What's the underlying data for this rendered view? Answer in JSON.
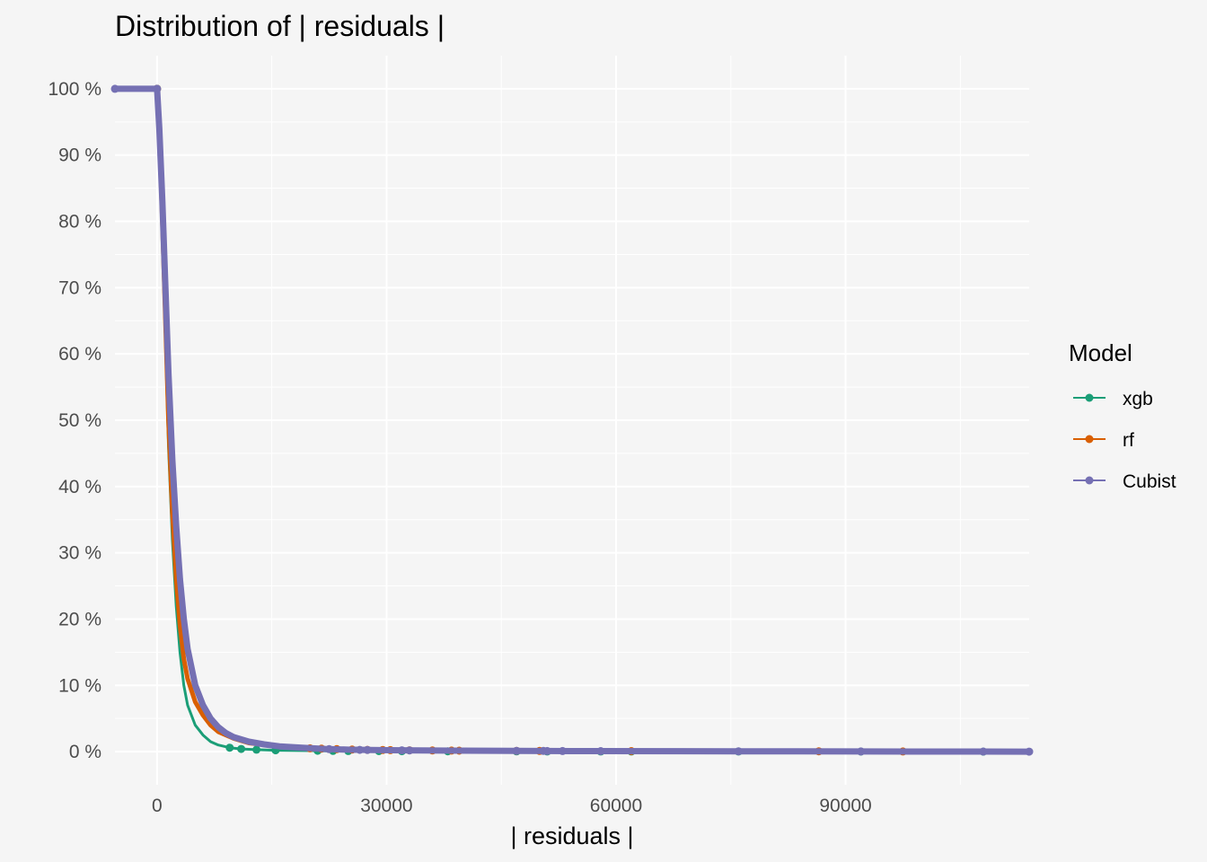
{
  "chart_data": {
    "type": "line",
    "title": "Distribution of | residuals |",
    "xlabel": "| residuals |",
    "ylabel": "",
    "xlim": [
      -5500,
      114000
    ],
    "ylim": [
      -0.05,
      1.05
    ],
    "x_ticks": [
      0,
      30000,
      60000,
      90000
    ],
    "x_tick_labels": [
      "0",
      "30000",
      "60000",
      "90000"
    ],
    "y_ticks": [
      0,
      0.1,
      0.2,
      0.3,
      0.4,
      0.5,
      0.6,
      0.7,
      0.8,
      0.9,
      1.0
    ],
    "y_tick_labels": [
      "0 %",
      "10 %",
      "20 %",
      "30 %",
      "40 %",
      "50 %",
      "60 %",
      "70 %",
      "80 %",
      "90 %",
      "100 %"
    ],
    "grid": true,
    "legend": {
      "title": "Model",
      "position": "right"
    },
    "series": [
      {
        "name": "xgb",
        "color": "#1b9e77",
        "line_width": 3,
        "points": [
          [
            -5500,
            1.0
          ],
          [
            0,
            1.0
          ],
          [
            300,
            0.92
          ],
          [
            700,
            0.78
          ],
          [
            1100,
            0.62
          ],
          [
            1500,
            0.46
          ],
          [
            2000,
            0.32
          ],
          [
            2500,
            0.22
          ],
          [
            3000,
            0.15
          ],
          [
            3500,
            0.1
          ],
          [
            4000,
            0.07
          ],
          [
            5000,
            0.04
          ],
          [
            6000,
            0.025
          ],
          [
            7000,
            0.015
          ],
          [
            8000,
            0.01
          ],
          [
            9500,
            0.006
          ],
          [
            11000,
            0.004
          ],
          [
            13000,
            0.003
          ],
          [
            15500,
            0.002
          ],
          [
            20000,
            0.0015
          ],
          [
            22000,
            0.0012
          ],
          [
            25000,
            0.001
          ],
          [
            29000,
            0.0008
          ],
          [
            32000,
            0.0006
          ],
          [
            38000,
            0.0005
          ],
          [
            47000,
            0.0004
          ],
          [
            51000,
            0.0003
          ],
          [
            60000,
            0.0002
          ],
          [
            76000,
            0.0002
          ],
          [
            92000,
            0.0001
          ],
          [
            108000,
            5e-05
          ],
          [
            114000,
            0.0
          ]
        ],
        "markers": [
          0,
          9500,
          11000,
          13000,
          15500,
          21000,
          23000,
          25000,
          29000,
          32000,
          38000,
          47000,
          51000,
          58000,
          62000,
          76000,
          92000,
          108000
        ]
      },
      {
        "name": "rf",
        "color": "#d95f02",
        "line_width": 5,
        "points": [
          [
            -5500,
            1.0
          ],
          [
            0,
            1.0
          ],
          [
            300,
            0.93
          ],
          [
            700,
            0.8
          ],
          [
            1100,
            0.65
          ],
          [
            1500,
            0.5
          ],
          [
            2000,
            0.36
          ],
          [
            2500,
            0.26
          ],
          [
            3000,
            0.19
          ],
          [
            3500,
            0.14
          ],
          [
            4000,
            0.11
          ],
          [
            5000,
            0.075
          ],
          [
            6000,
            0.055
          ],
          [
            7000,
            0.04
          ],
          [
            8000,
            0.03
          ],
          [
            10000,
            0.02
          ],
          [
            12000,
            0.013
          ],
          [
            15000,
            0.009
          ],
          [
            18000,
            0.007
          ],
          [
            20000,
            0.005
          ],
          [
            23000,
            0.004
          ],
          [
            26000,
            0.003
          ],
          [
            29000,
            0.0025
          ],
          [
            33000,
            0.002
          ],
          [
            36000,
            0.0018
          ],
          [
            40000,
            0.0015
          ],
          [
            47000,
            0.0012
          ],
          [
            51000,
            0.001
          ],
          [
            62000,
            0.0008
          ],
          [
            86000,
            0.0005
          ],
          [
            97500,
            0.0002
          ],
          [
            114000,
            0.0
          ]
        ],
        "markers": [
          0,
          20000,
          21500,
          23500,
          25500,
          27500,
          29500,
          30500,
          33000,
          36000,
          38500,
          39500,
          47000,
          50000,
          62000,
          86500,
          97500
        ]
      },
      {
        "name": "Cubist",
        "color": "#7570b3",
        "line_width": 7,
        "points": [
          [
            -5500,
            1.0
          ],
          [
            0,
            1.0
          ],
          [
            300,
            0.94
          ],
          [
            700,
            0.83
          ],
          [
            1100,
            0.7
          ],
          [
            1500,
            0.57
          ],
          [
            2000,
            0.44
          ],
          [
            2500,
            0.34
          ],
          [
            3000,
            0.26
          ],
          [
            3500,
            0.2
          ],
          [
            4000,
            0.155
          ],
          [
            5000,
            0.1
          ],
          [
            6000,
            0.07
          ],
          [
            7000,
            0.05
          ],
          [
            8000,
            0.037
          ],
          [
            9000,
            0.028
          ],
          [
            10000,
            0.022
          ],
          [
            12000,
            0.015
          ],
          [
            14000,
            0.011
          ],
          [
            16000,
            0.008
          ],
          [
            19000,
            0.006
          ],
          [
            22000,
            0.004
          ],
          [
            25000,
            0.003
          ],
          [
            28000,
            0.0025
          ],
          [
            32000,
            0.002
          ],
          [
            40000,
            0.0015
          ],
          [
            47000,
            0.0012
          ],
          [
            51000,
            0.001
          ],
          [
            58000,
            0.0008
          ],
          [
            76000,
            0.0005
          ],
          [
            92000,
            0.0003
          ],
          [
            108000,
            0.0001
          ],
          [
            114000,
            0.0
          ]
        ],
        "markers": [
          -5500,
          0,
          22500,
          26500,
          27500,
          32000,
          33000,
          47000,
          50500,
          51000,
          53000,
          58000,
          76000,
          92000,
          108000,
          114000
        ]
      }
    ]
  }
}
